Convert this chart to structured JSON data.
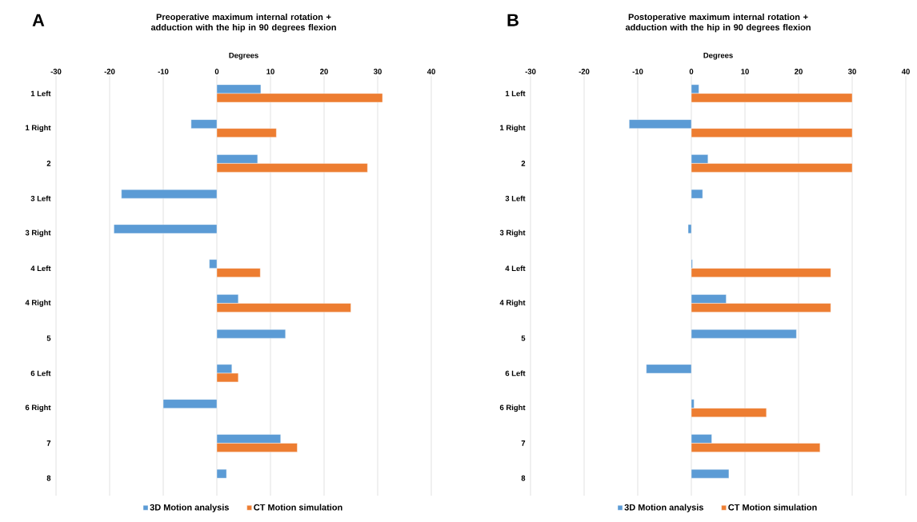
{
  "chart_data": [
    {
      "type": "bar",
      "orientation": "horizontal",
      "title": "Preoperative maximum internal rotation + adduction with the hip in 90 degrees flexion",
      "xlabel": "Degrees",
      "annotations": [
        "A"
      ],
      "categories": [
        "1 Left",
        "1 Right",
        "2",
        "3 Left",
        "3 Right",
        "4 Left",
        "4 Right",
        "5",
        "6 Left",
        "6 Right",
        "7",
        "8"
      ],
      "series": [
        {
          "name": "3D Motion analysis",
          "color": "#5b9bd5",
          "values": [
            8.2,
            -4.8,
            7.6,
            -17.8,
            -19.2,
            -1.4,
            4.0,
            12.8,
            2.8,
            -10.0,
            11.9,
            1.8
          ]
        },
        {
          "name": "CT Motion simulation",
          "color": "#ed7d31",
          "values": [
            30.9,
            11.1,
            28.1,
            null,
            null,
            8.1,
            25.0,
            null,
            4.0,
            null,
            15.0,
            null
          ]
        }
      ],
      "xlim": [
        -30,
        40
      ],
      "xticks": [
        -30,
        -20,
        -10,
        0,
        10,
        20,
        30,
        40
      ],
      "grid": "x",
      "legend": "bottom"
    },
    {
      "type": "bar",
      "orientation": "horizontal",
      "title": "Postoperative maximum internal rotation + adduction with the hip in 90 degrees flexion",
      "xlabel": "Degrees",
      "annotations": [
        "B"
      ],
      "categories": [
        "1 Left",
        "1 Right",
        "2",
        "3 Left",
        "3 Right",
        "4 Left",
        "4 Right",
        "5",
        "6 Left",
        "6 Right",
        "7",
        "8"
      ],
      "series": [
        {
          "name": "3D Motion analysis",
          "color": "#5b9bd5",
          "values": [
            1.4,
            -11.6,
            3.1,
            2.1,
            -0.6,
            0.2,
            6.5,
            19.6,
            -8.4,
            0.5,
            3.8,
            7.0
          ]
        },
        {
          "name": "CT Motion simulation",
          "color": "#ed7d31",
          "values": [
            30,
            30,
            30,
            null,
            null,
            26,
            26,
            null,
            null,
            14.0,
            24.0,
            null
          ]
        }
      ],
      "xlim": [
        -30,
        40
      ],
      "xticks": [
        -30,
        -20,
        -10,
        0,
        10,
        20,
        30,
        40
      ],
      "grid": "x",
      "legend": "bottom"
    }
  ]
}
